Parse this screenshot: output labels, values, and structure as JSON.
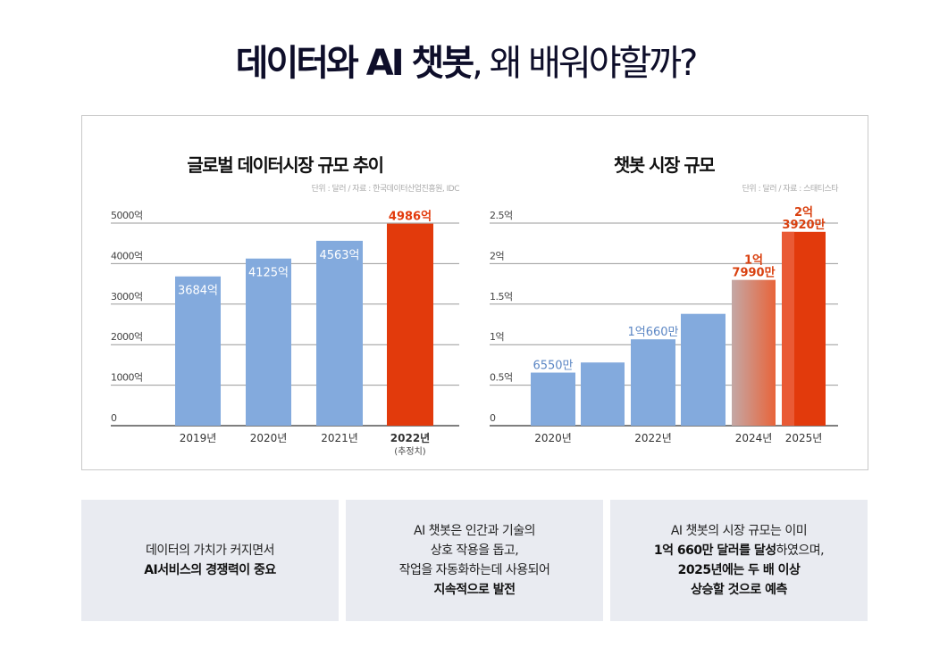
{
  "header": {
    "title_highlight": "데이터와 AI 챗봇",
    "title_rest": ", 왜 배워야할까?",
    "highlight_color": "#6ab4ee"
  },
  "chart_data": [
    {
      "type": "bar",
      "title": "글로벌 데이터시장 규모 추이",
      "source": "단위 : 달러 / 자료 : 한국데이터산업진흥원, IDC",
      "categories": [
        "2019년",
        "2020년",
        "2021년",
        "2022년"
      ],
      "category_notes": [
        "",
        "",
        "",
        "(추정치)"
      ],
      "values": [
        3684,
        4125,
        4563,
        4986
      ],
      "value_labels": [
        "3684억",
        "4125억",
        "4563억",
        "4986억"
      ],
      "unit": "억 달러",
      "ylim": [
        0,
        5000
      ],
      "yticks": [
        "0",
        "1000억",
        "2000억",
        "3000억",
        "4000억",
        "5000억"
      ],
      "grid": true,
      "colors": [
        "#83aadd",
        "#83aadd",
        "#83aadd",
        "#e23a0c"
      ]
    },
    {
      "type": "bar",
      "title": "챗봇 시장 규모",
      "source": "단위 : 달러 / 자료 : 스태티스타",
      "categories": [
        "2020년",
        "",
        "2022년",
        "",
        "2024년",
        "2025년"
      ],
      "values": [
        0.655,
        0.78,
        1.066,
        1.38,
        1.799,
        2.392
      ],
      "value_labels": [
        [
          "6550만"
        ],
        [],
        [
          "1억660만"
        ],
        [],
        [
          "1억",
          "7990만"
        ],
        [
          "2억",
          "3920만"
        ]
      ],
      "unit": "억 달러",
      "ylim": [
        0,
        2.5
      ],
      "yticks": [
        "0",
        "0.5억",
        "1억",
        "1.5억",
        "2억",
        "2.5억"
      ],
      "grid": true,
      "colors": [
        "#83aadd",
        "#83aadd",
        "#83aadd",
        "#83aadd",
        "gradient",
        "#e23a0c"
      ],
      "label_colors": [
        "#5b86c4",
        "",
        "#5b86c4",
        "",
        "#d9400f",
        "#d9400f"
      ]
    }
  ],
  "boxes": [
    {
      "lines": [
        {
          "text": "데이터의 가치가 커지면서",
          "bold": false
        },
        {
          "text": "AI서비스의 경쟁력이 중요",
          "bold": true
        }
      ]
    },
    {
      "lines": [
        {
          "text": "AI 챗봇은 인간과 기술의",
          "bold": false
        },
        {
          "text": "상호 작용을 돕고,",
          "bold": false
        },
        {
          "text": "작업을 자동화하는데 사용되어",
          "bold": false
        },
        {
          "text": "지속적으로 발전",
          "bold": true
        }
      ]
    },
    {
      "lines": [
        {
          "text": "AI 챗봇의 시장 규모는 이미",
          "bold": false
        },
        {
          "parts": [
            {
              "text": "1억 660만 달러를 달성",
              "bold": true
            },
            {
              "text": "하였으며,",
              "bold": false
            }
          ]
        },
        {
          "text": "2025년에는 두 배 이상",
          "bold": true
        },
        {
          "text": "상승할 것으로 예측",
          "bold": true
        }
      ]
    }
  ]
}
